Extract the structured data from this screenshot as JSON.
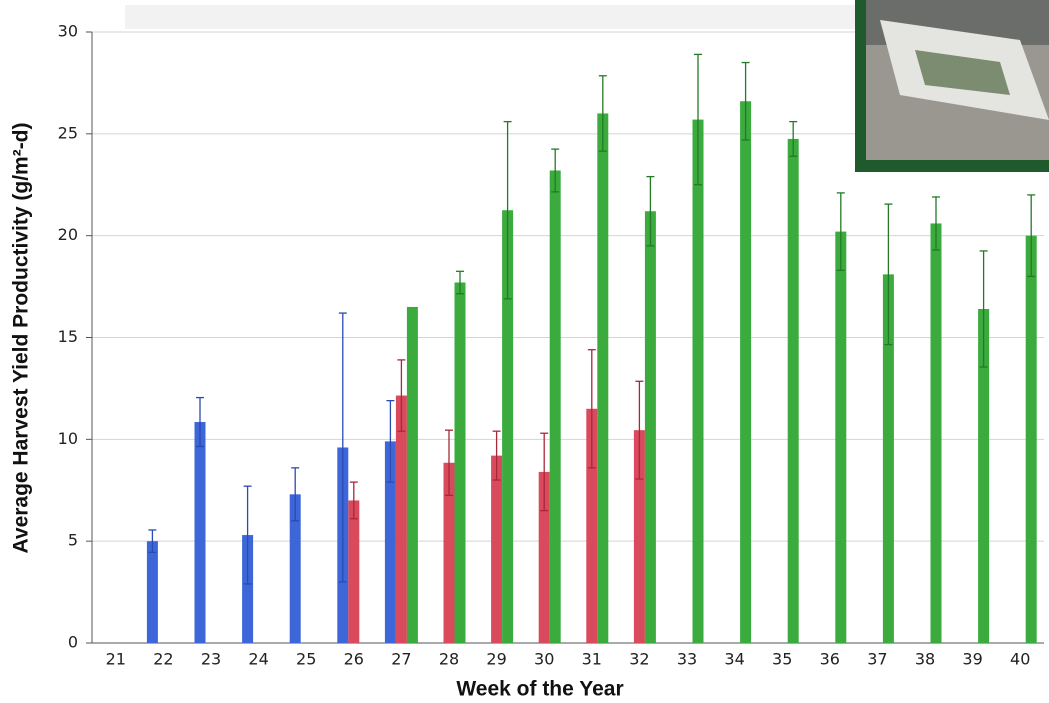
{
  "chart_data": {
    "type": "bar",
    "y_label": "Average Harvest Yield Productivity (g/m²-d)",
    "x_label": "Week of the Year",
    "categories": [
      "21",
      "22",
      "23",
      "24",
      "25",
      "26",
      "27",
      "28",
      "29",
      "30",
      "31",
      "32",
      "33",
      "34",
      "35",
      "36",
      "37",
      "38",
      "39",
      "40"
    ],
    "series": [
      {
        "color": "#3d67d8",
        "error_color": "#2a4bb0",
        "values": [
          null,
          5.0,
          10.85,
          5.3,
          7.3,
          9.6,
          9.9,
          null,
          null,
          null,
          null,
          null,
          null,
          null,
          null,
          null,
          null,
          null,
          null,
          null
        ],
        "errors": [
          null,
          0.55,
          1.2,
          2.4,
          1.3,
          6.6,
          2.0,
          null,
          null,
          null,
          null,
          null,
          null,
          null,
          null,
          null,
          null,
          null,
          null,
          null
        ]
      },
      {
        "color": "#d84a5c",
        "error_color": "#a8283a",
        "values": [
          null,
          null,
          null,
          null,
          null,
          7.0,
          12.15,
          8.85,
          9.2,
          8.4,
          11.5,
          10.45,
          null,
          null,
          null,
          null,
          null,
          null,
          null,
          null
        ],
        "errors": [
          null,
          null,
          null,
          null,
          null,
          0.9,
          1.75,
          1.6,
          1.2,
          1.9,
          2.9,
          2.4,
          null,
          null,
          null,
          null,
          null,
          null,
          null,
          null
        ]
      },
      {
        "color": "#3bab3e",
        "error_color": "#237a26",
        "values": [
          null,
          null,
          null,
          null,
          null,
          null,
          16.5,
          17.7,
          21.25,
          23.2,
          26.0,
          21.2,
          25.7,
          26.6,
          24.75,
          20.2,
          18.1,
          20.6,
          16.4,
          20.0
        ],
        "errors": [
          null,
          null,
          null,
          null,
          null,
          null,
          null,
          0.55,
          4.35,
          1.05,
          1.85,
          1.7,
          3.2,
          1.9,
          0.85,
          1.9,
          3.45,
          1.3,
          2.85,
          2.0
        ]
      }
    ],
    "ylim": [
      0,
      30
    ],
    "yticks": [
      0,
      5,
      10,
      15,
      20,
      25,
      30
    ],
    "grid": true
  }
}
